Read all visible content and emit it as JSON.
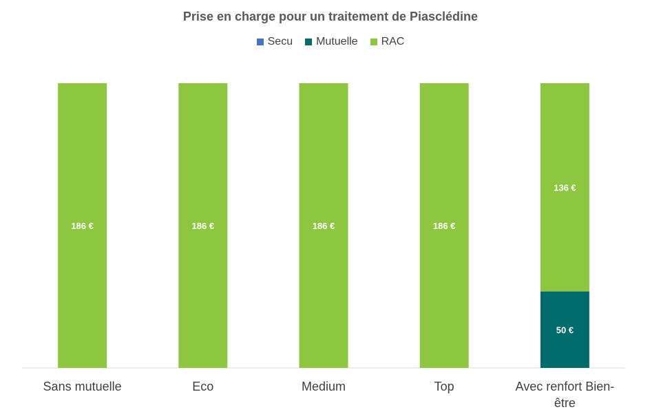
{
  "chart_data": {
    "type": "bar",
    "stacked": true,
    "title": "Prise en charge pour un traitement de Piasclédine",
    "legend_position": "top",
    "grid": false,
    "categories": [
      "Sans mutuelle",
      "Eco",
      "Medium",
      "Top",
      "Avec renfort Bien-être"
    ],
    "category_label_lines": [
      [
        "Sans mutuelle"
      ],
      [
        "Eco"
      ],
      [
        "Medium"
      ],
      [
        "Top"
      ],
      [
        "Avec renfort Bien-",
        "être"
      ]
    ],
    "series": [
      {
        "name": "Secu",
        "color": "#4472C4",
        "values": [
          0,
          0,
          0,
          0,
          0
        ],
        "labels": [
          "",
          "",
          "",
          "",
          ""
        ]
      },
      {
        "name": "Mutuelle",
        "color": "#006B6B",
        "values": [
          0,
          0,
          0,
          0,
          50
        ],
        "labels": [
          "",
          "",
          "",
          "",
          "50 €"
        ]
      },
      {
        "name": "RAC",
        "color": "#8DC63F",
        "values": [
          186,
          186,
          186,
          186,
          136
        ],
        "labels": [
          "186 €",
          "186 €",
          "186 €",
          "186 €",
          "136 €"
        ]
      }
    ],
    "ylim": [
      0,
      186
    ],
    "xlabel": "",
    "ylabel": ""
  }
}
